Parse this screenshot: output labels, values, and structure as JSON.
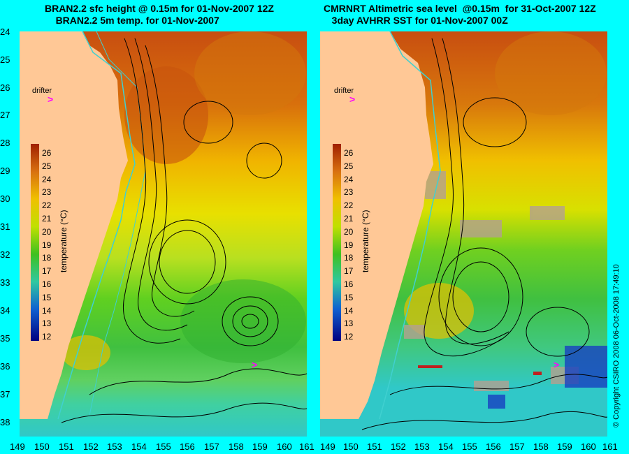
{
  "titles": {
    "left_line1": "BRAN2.2 sfc height @ 0.15m for 01-Nov-2007 12Z",
    "left_line2": "BRAN2.2 5m temp. for 01-Nov-2007",
    "right_line1": "CMRNRT Altimetric sea level  @0.15m  for 31-Oct-2007 12Z",
    "right_line2": "3day AVHRR SST for 01-Nov-2007 00Z"
  },
  "axes": {
    "lat_ticks": [
      "24",
      "25",
      "26",
      "27",
      "28",
      "29",
      "30",
      "31",
      "32",
      "33",
      "34",
      "35",
      "36",
      "37",
      "38"
    ],
    "lon_ticks": [
      "149",
      "150",
      "151",
      "152",
      "153",
      "154",
      "155",
      "156",
      "157",
      "158",
      "159",
      "160",
      "161"
    ]
  },
  "colorbar": {
    "label": "temperature (°C)",
    "ticks": [
      "26",
      "25",
      "24",
      "23",
      "22",
      "21",
      "20",
      "19",
      "18",
      "17",
      "16",
      "15",
      "14",
      "13",
      "12"
    ]
  },
  "drifter": {
    "label": "drifter",
    "marker": ">"
  },
  "copyright": "© Copyright CSIRO 2008   06-Oct-2008 17:49:10",
  "colors": {
    "land": "#ffc896",
    "ocean_warm": "#cc5a10",
    "ocean_mid": "#f0c000",
    "ocean_cool": "#40c040",
    "ocean_cold": "#20c8c8",
    "contour": "#000000",
    "isobath": "#40d0d0",
    "drifter": "#ff00ff",
    "page_bg": "#00ffff"
  }
}
